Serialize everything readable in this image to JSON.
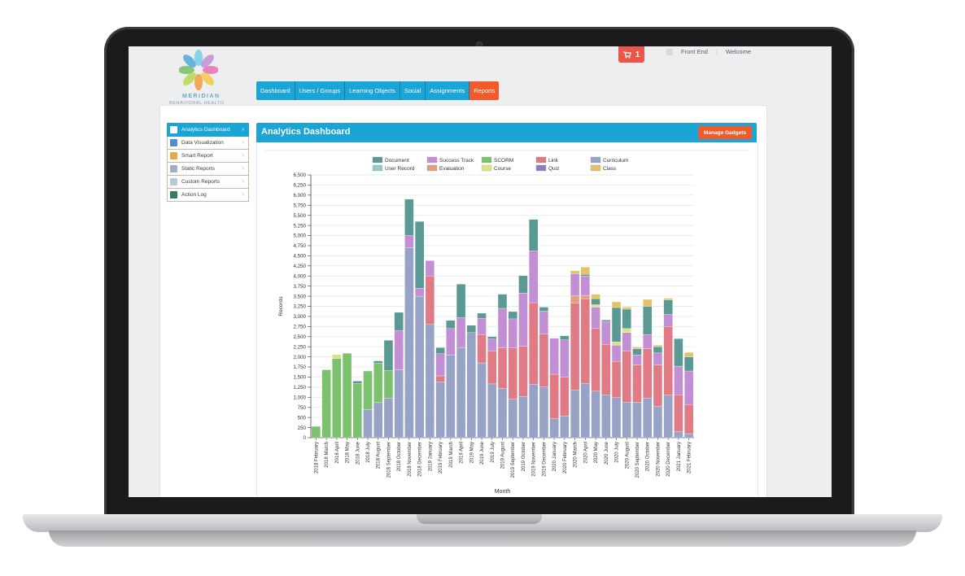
{
  "cart": {
    "count": "1"
  },
  "topbar": {
    "front_end": "Front End",
    "welcome": "Welcome"
  },
  "logo": {
    "name": "MERIDIAN",
    "sub": "BEHAVIORAL HEALTH"
  },
  "nav": {
    "tabs": [
      "Dashboard",
      "Users / Groups",
      "Learning Objects",
      "Social",
      "Assignments",
      "Reports"
    ],
    "active": "Reports"
  },
  "sidebar": {
    "items": [
      {
        "label": "Analytics Dashboard",
        "icon": "grid-icon",
        "active": true
      },
      {
        "label": "Data Visualization",
        "icon": "chart-icon",
        "active": false
      },
      {
        "label": "Smart Report",
        "icon": "report-icon",
        "active": false
      },
      {
        "label": "Static Reports",
        "icon": "document-icon",
        "active": false
      },
      {
        "label": "Custom Reports",
        "icon": "custom-report-icon",
        "active": false
      },
      {
        "label": "Action Log",
        "icon": "log-icon",
        "active": false
      }
    ]
  },
  "panel": {
    "title": "Analytics Dashboard",
    "manage_button": "Manage Gadgets"
  },
  "colors": {
    "accent": "#1aa5d6",
    "action": "#f15a2b"
  },
  "chart_data": {
    "type": "bar",
    "stacked": true,
    "xlabel": "Month",
    "ylabel": "Records",
    "ylim": [
      0,
      6500
    ],
    "yticks": [
      "0",
      "250",
      "500",
      "750",
      "1,000",
      "1,250",
      "1,500",
      "1,750",
      "2,000",
      "2,250",
      "2,500",
      "2,750",
      "3,000",
      "3,250",
      "3,500",
      "3,750",
      "4,000",
      "4,250",
      "4,500",
      "4,750",
      "5,000",
      "5,250",
      "5,500",
      "5,750",
      "6,000",
      "6,250",
      "6,500"
    ],
    "legend_position": "top",
    "grid": true,
    "categories": [
      "2018 February",
      "2018 March",
      "2018 April",
      "2018 May",
      "2018 June",
      "2018 July",
      "2018 August",
      "2018 September",
      "2018 October",
      "2018 November",
      "2018 December",
      "2019 January",
      "2019 February",
      "2019 March",
      "2019 April",
      "2019 May",
      "2019 June",
      "2019 July",
      "2019 August",
      "2019 September",
      "2019 October",
      "2019 November",
      "2019 December",
      "2020 January",
      "2020 February",
      "2020 March",
      "2020 April",
      "2020 May",
      "2020 June",
      "2020 July",
      "2020 August",
      "2020 September",
      "2020 October",
      "2020 November",
      "2020 December",
      "2021 January",
      "2021 February"
    ],
    "series": [
      {
        "name": "Curriculum",
        "color": "#96a3c6",
        "values": [
          0,
          0,
          0,
          0,
          0,
          700,
          870,
          980,
          1680,
          4700,
          3500,
          2800,
          1380,
          2050,
          2220,
          2600,
          1850,
          1330,
          1220,
          950,
          1020,
          1320,
          1260,
          470,
          540,
          1180,
          1340,
          1150,
          1060,
          990,
          880,
          880,
          980,
          780,
          1050,
          150,
          100
        ]
      },
      {
        "name": "Link",
        "color": "#e07a84",
        "values": [
          0,
          0,
          0,
          0,
          0,
          0,
          0,
          0,
          0,
          0,
          0,
          1200,
          150,
          0,
          0,
          0,
          700,
          820,
          1000,
          1270,
          1240,
          2020,
          1300,
          1100,
          960,
          2150,
          2100,
          1550,
          1250,
          900,
          1270,
          920,
          1220,
          1020,
          1700,
          900,
          720
        ]
      },
      {
        "name": "SCORM",
        "color": "#7cc26e",
        "values": [
          280,
          1680,
          1960,
          2090,
          1340,
          950,
          970,
          680,
          0,
          0,
          0,
          0,
          0,
          0,
          0,
          0,
          0,
          0,
          0,
          0,
          0,
          0,
          0,
          0,
          0,
          0,
          0,
          0,
          0,
          0,
          0,
          0,
          0,
          0,
          0,
          0,
          0
        ]
      },
      {
        "name": "Evaluation",
        "color": "#e4a07e",
        "values": [
          0,
          0,
          0,
          0,
          0,
          0,
          0,
          0,
          0,
          0,
          0,
          0,
          0,
          0,
          0,
          0,
          0,
          0,
          0,
          0,
          0,
          0,
          0,
          0,
          0,
          180,
          80,
          0,
          0,
          0,
          0,
          0,
          0,
          0,
          0,
          0,
          0
        ]
      },
      {
        "name": "Success Track",
        "color": "#c28fd4",
        "values": [
          0,
          0,
          0,
          0,
          0,
          0,
          0,
          0,
          970,
          300,
          200,
          380,
          550,
          650,
          750,
          0,
          400,
          290,
          980,
          720,
          1320,
          1280,
          570,
          890,
          920,
          550,
          480,
          530,
          560,
          400,
          450,
          250,
          350,
          300,
          300,
          720,
          830
        ]
      },
      {
        "name": "Course",
        "color": "#d9e48a",
        "values": [
          0,
          0,
          100,
          0,
          0,
          0,
          0,
          0,
          0,
          0,
          0,
          0,
          0,
          0,
          0,
          0,
          0,
          0,
          0,
          0,
          0,
          0,
          0,
          0,
          0,
          0,
          0,
          60,
          0,
          80,
          100,
          0,
          0,
          0,
          0,
          0,
          0
        ]
      },
      {
        "name": "Document",
        "color": "#5b9a94",
        "values": [
          0,
          0,
          0,
          0,
          60,
          0,
          60,
          750,
          450,
          900,
          1650,
          0,
          150,
          200,
          830,
          180,
          130,
          60,
          350,
          180,
          430,
          780,
          100,
          0,
          100,
          0,
          40,
          150,
          40,
          850,
          480,
          150,
          700,
          150,
          360,
          680,
          350
        ]
      },
      {
        "name": "User Record",
        "color": "#9ec4d4",
        "values": [
          0,
          0,
          0,
          0,
          0,
          0,
          0,
          0,
          0,
          0,
          0,
          0,
          0,
          0,
          0,
          0,
          0,
          0,
          0,
          0,
          0,
          0,
          0,
          0,
          0,
          0,
          0,
          0,
          0,
          0,
          0,
          0,
          0,
          0,
          0,
          0,
          0
        ]
      },
      {
        "name": "Quiz",
        "color": "#8e7cbf",
        "values": [
          0,
          0,
          0,
          0,
          0,
          0,
          0,
          0,
          0,
          0,
          0,
          0,
          0,
          0,
          0,
          0,
          0,
          0,
          0,
          0,
          0,
          0,
          0,
          0,
          0,
          0,
          0,
          0,
          0,
          0,
          0,
          0,
          0,
          0,
          0,
          0,
          0
        ]
      },
      {
        "name": "Class",
        "color": "#e4c266",
        "values": [
          0,
          0,
          0,
          0,
          0,
          0,
          0,
          0,
          0,
          0,
          0,
          0,
          0,
          0,
          0,
          0,
          0,
          0,
          0,
          0,
          0,
          0,
          0,
          0,
          0,
          70,
          180,
          110,
          0,
          140,
          50,
          40,
          170,
          40,
          40,
          0,
          110
        ]
      }
    ],
    "legend_order": [
      "Document",
      "Success Track",
      "SCORM",
      "Link",
      "Curriculum",
      "User Record",
      "Evaluation",
      "Course",
      "Quiz",
      "Class"
    ]
  }
}
